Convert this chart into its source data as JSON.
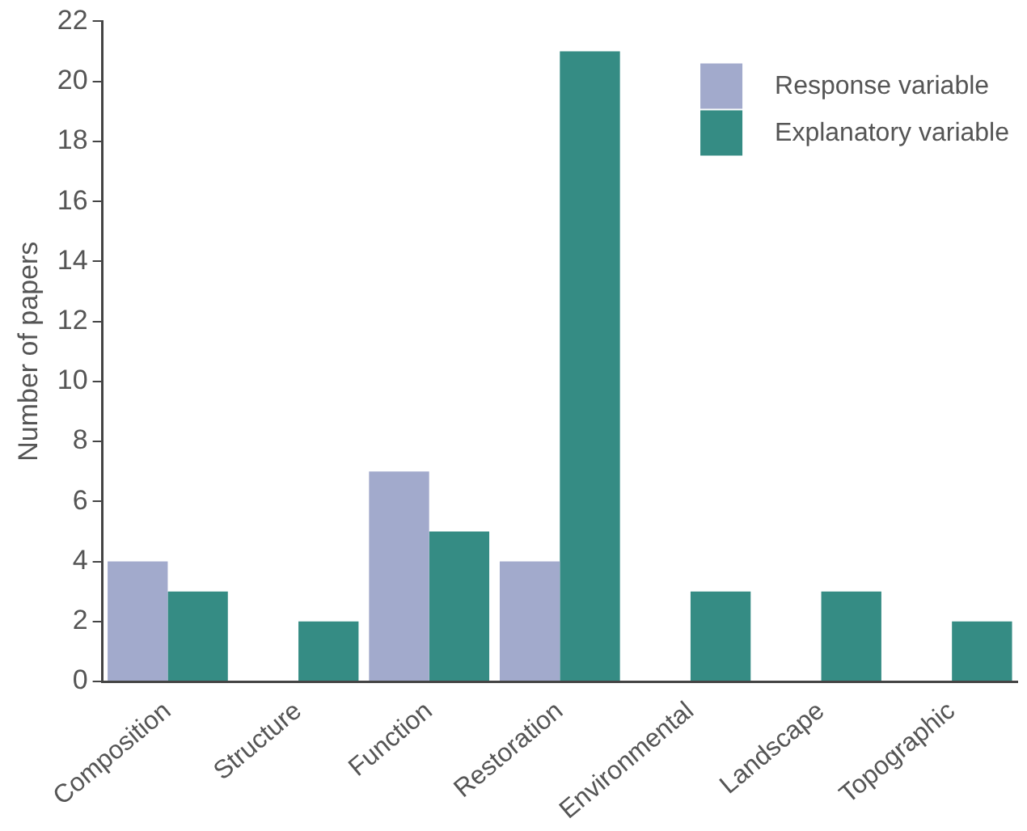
{
  "chart_data": {
    "type": "bar",
    "ylabel": "Number of papers",
    "categories": [
      "Composition",
      "Structure",
      "Function",
      "Restoration",
      "Environmental",
      "Landscape",
      "Topographic"
    ],
    "series": [
      {
        "name": "Response variable",
        "color": "#a2aacc",
        "values": [
          4,
          0,
          7,
          4,
          0,
          0,
          0
        ]
      },
      {
        "name": "Explanatory variable",
        "color": "#358c84",
        "values": [
          3,
          2,
          5,
          21,
          3,
          3,
          2
        ]
      }
    ],
    "ylim": [
      0,
      22
    ],
    "yticks": [
      0,
      2,
      4,
      6,
      8,
      10,
      12,
      14,
      16,
      18,
      20,
      22
    ],
    "grid": false,
    "legend": "top right"
  }
}
